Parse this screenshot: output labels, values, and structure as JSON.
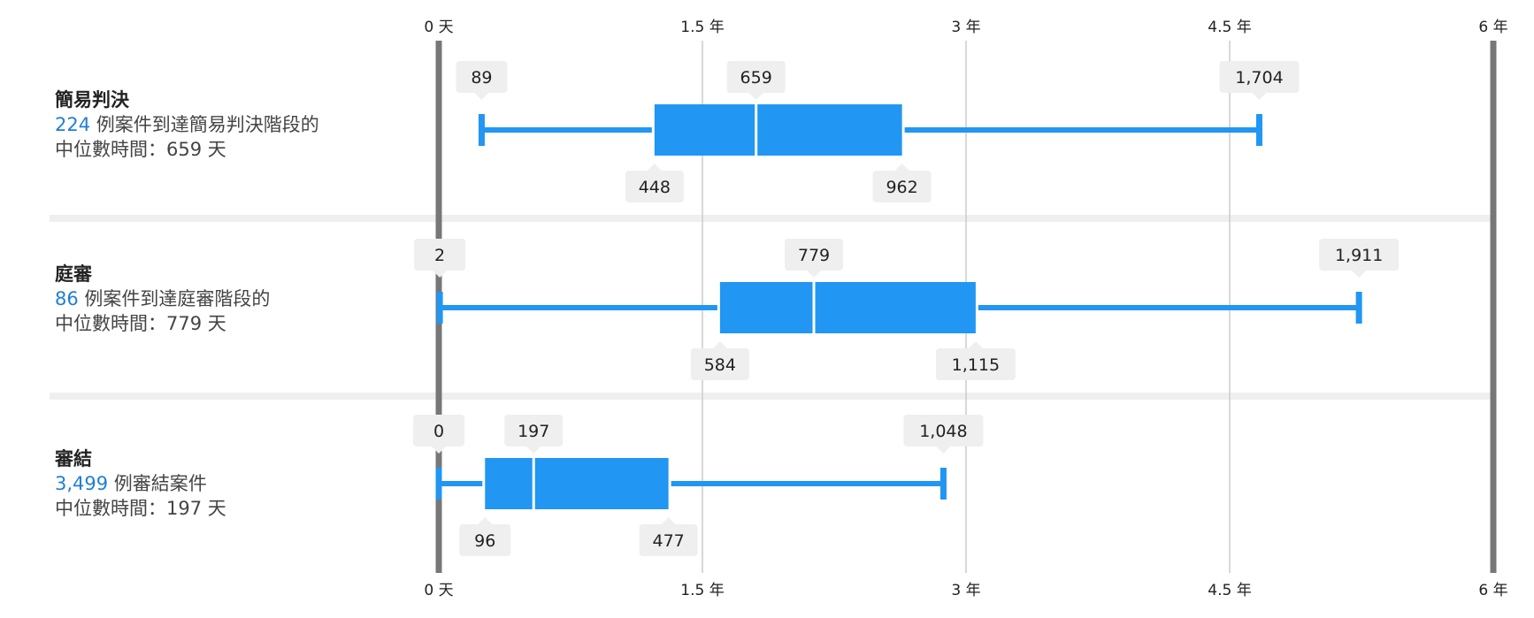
{
  "chart_data": {
    "type": "box",
    "unit": "天",
    "x_range_days": [
      0,
      2190
    ],
    "axis": {
      "ticks": [
        {
          "value": 0,
          "label": "0 天"
        },
        {
          "value": 547.5,
          "label": "1.5 年"
        },
        {
          "value": 1095,
          "label": "3 年"
        },
        {
          "value": 1642.5,
          "label": "4.5 年"
        },
        {
          "value": 2190,
          "label": "6 年"
        }
      ]
    },
    "series": [
      {
        "title": "簡易判決",
        "count": "224",
        "count_text": " 例案件到達簡易判決階段的",
        "median_text": "中位數時間：659 天",
        "min": 89,
        "q1": 448,
        "median": 659,
        "q3": 962,
        "max": 1704,
        "labels": {
          "min": "89",
          "q1": "448",
          "median": "659",
          "q3": "962",
          "max": "1,704"
        }
      },
      {
        "title": "庭審",
        "count": "86",
        "count_text": " 例案件到達庭審階段的",
        "median_text": "中位數時間：779 天",
        "min": 2,
        "q1": 584,
        "median": 779,
        "q3": 1115,
        "max": 1911,
        "labels": {
          "min": "2",
          "q1": "584",
          "median": "779",
          "q3": "1,115",
          "max": "1,911"
        }
      },
      {
        "title": "審結",
        "count": "3,499",
        "count_text": " 例審結案件",
        "median_text": "中位數時間：197 天",
        "min": 0,
        "q1": 96,
        "median": 197,
        "q3": 477,
        "max": 1048,
        "labels": {
          "min": "0",
          "q1": "96",
          "median": "197",
          "q3": "477",
          "max": "1,048"
        }
      }
    ],
    "colors": {
      "box": "#2196f3",
      "gridline": "#cccccc",
      "axis_edge": "#777777",
      "row_separator": "#efefef",
      "label_bg": "#efefef",
      "count_text": "#1f7fd6"
    }
  }
}
